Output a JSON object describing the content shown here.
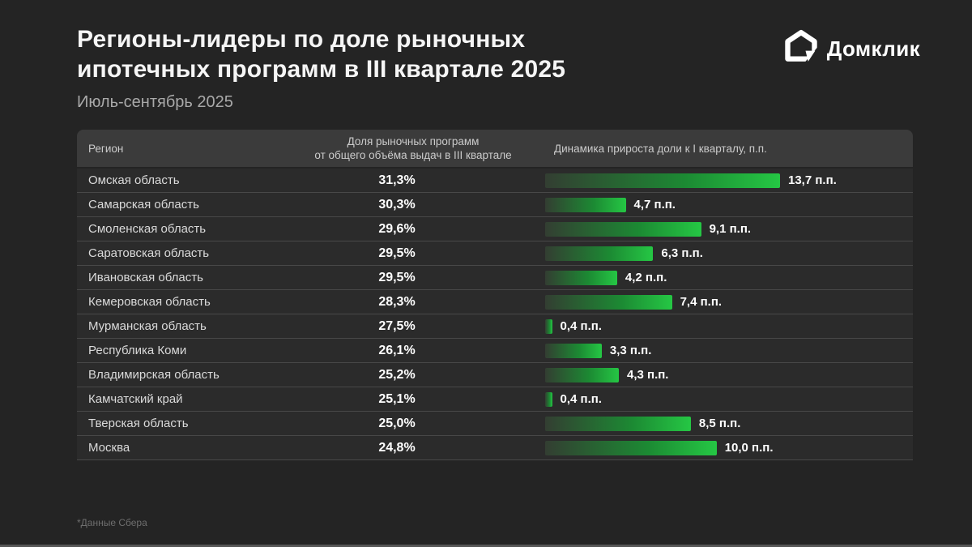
{
  "title": "Регионы-лидеры по доле рыночных\nипотечных программ в III квартале 2025",
  "subtitle": "Июль-сентябрь 2025",
  "logo": {
    "brand": "Домклик",
    "icon": "domclick-house-cursor-icon"
  },
  "table": {
    "columns": {
      "region": "Регион",
      "share": "Доля рыночных программ\nот общего объёма выдач в III квартале",
      "dynamics": "Динамика прироста доли к I кварталу, п.п."
    },
    "rows": [
      {
        "region": "Омская область",
        "share": "31,3%",
        "delta": 13.7,
        "delta_label": "13,7 п.п."
      },
      {
        "region": "Самарская область",
        "share": "30,3%",
        "delta": 4.7,
        "delta_label": "4,7 п.п."
      },
      {
        "region": "Смоленская область",
        "share": "29,6%",
        "delta": 9.1,
        "delta_label": "9,1 п.п."
      },
      {
        "region": "Саратовская область",
        "share": "29,5%",
        "delta": 6.3,
        "delta_label": "6,3 п.п."
      },
      {
        "region": "Ивановская область",
        "share": "29,5%",
        "delta": 4.2,
        "delta_label": "4,2 п.п."
      },
      {
        "region": "Кемеровская область",
        "share": "28,3%",
        "delta": 7.4,
        "delta_label": "7,4 п.п."
      },
      {
        "region": "Мурманская область",
        "share": "27,5%",
        "delta": 0.4,
        "delta_label": "0,4 п.п."
      },
      {
        "region": "Республика Коми",
        "share": "26,1%",
        "delta": 3.3,
        "delta_label": "3,3 п.п."
      },
      {
        "region": "Владимирская область",
        "share": "25,2%",
        "delta": 4.3,
        "delta_label": "4,3 п.п."
      },
      {
        "region": "Камчатский край",
        "share": "25,1%",
        "delta": 0.4,
        "delta_label": "0,4 п.п."
      },
      {
        "region": "Тверская область",
        "share": "25,0%",
        "delta": 8.5,
        "delta_label": "8,5 п.п."
      },
      {
        "region": "Москва",
        "share": "24,8%",
        "delta": 10.0,
        "delta_label": "10,0 п.п."
      }
    ]
  },
  "footnote": "*Данные Сбера",
  "colors": {
    "background": "#242424",
    "header_band": "#3b3b3b",
    "row_band": "#2b2b2b",
    "bar_gradient_start": "#333e32",
    "bar_gradient_end": "#25c744",
    "accent_green": "#21a038"
  },
  "chart_data": {
    "type": "bar",
    "orientation": "horizontal",
    "title": "Регионы-лидеры по доле рыночных ипотечных программ в III квартале 2025",
    "subtitle": "Июль-сентябрь 2025",
    "categories": [
      "Омская область",
      "Самарская область",
      "Смоленская область",
      "Саратовская область",
      "Ивановская область",
      "Кемеровская область",
      "Мурманская область",
      "Республика Коми",
      "Владимирская область",
      "Камчатский край",
      "Тверская область",
      "Москва"
    ],
    "series": [
      {
        "name": "Доля рыночных программ от общего объёма выдач в III квартале, %",
        "values": [
          31.3,
          30.3,
          29.6,
          29.5,
          29.5,
          28.3,
          27.5,
          26.1,
          25.2,
          25.1,
          25.0,
          24.8
        ]
      },
      {
        "name": "Динамика прироста доли к I кварталу, п.п.",
        "values": [
          13.7,
          4.7,
          9.1,
          6.3,
          4.2,
          7.4,
          0.4,
          3.3,
          4.3,
          0.4,
          8.5,
          10.0
        ]
      }
    ],
    "bar_axis_range": [
      0,
      13.7
    ],
    "grid": false,
    "legend_position": "none",
    "source_note": "*Данные Сбера"
  }
}
